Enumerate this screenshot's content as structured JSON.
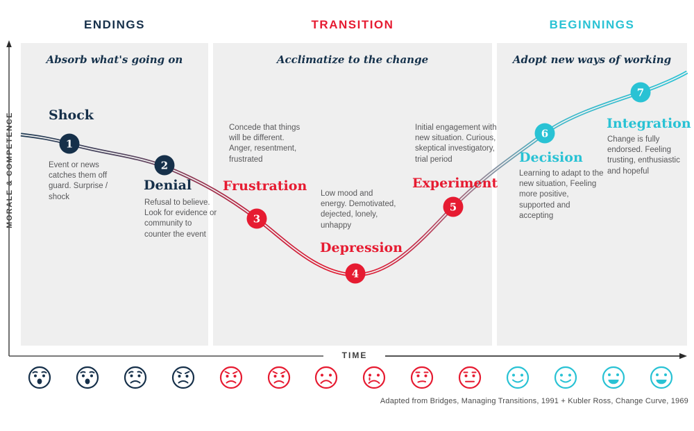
{
  "phases": [
    {
      "label": "ENDINGS",
      "subtitle": "Absorb what's going on",
      "color": "navy"
    },
    {
      "label": "TRANSITION",
      "subtitle": "Acclimatize to the change",
      "color": "red"
    },
    {
      "label": "BEGINNINGS",
      "subtitle": "Adopt new ways of working",
      "color": "cyan"
    }
  ],
  "axes": {
    "y_label": "MORALE & COMPETENCE",
    "x_label": "TIME"
  },
  "stages": [
    {
      "number": "1",
      "name": "Shock",
      "color": "navy",
      "description": "Event or news catches them off guard. Surprise / shock"
    },
    {
      "number": "2",
      "name": "Denial",
      "color": "navy",
      "description": "Refusal to believe. Look for evidence or community to counter the event"
    },
    {
      "number": "3",
      "name": "Frustration",
      "color": "red",
      "description": "Concede that things will be different. Anger, resentment, frustrated"
    },
    {
      "number": "4",
      "name": "Depression",
      "color": "red",
      "description": "Low mood and energy. Demotivated, dejected, lonely, unhappy"
    },
    {
      "number": "5",
      "name": "Experiment",
      "color": "red",
      "description": "Initial engagement with new situation. Curious, skeptical investigatory, trial period"
    },
    {
      "number": "6",
      "name": "Decision",
      "color": "cyan",
      "description": "Learning to adapt to the new situation, Feeling more positive, supported and accepting"
    },
    {
      "number": "7",
      "name": "Integration",
      "color": "cyan",
      "description": "Change is fully endorsed. Feeling trusting, enthusiastic and hopeful"
    }
  ],
  "faces": [
    {
      "color": "navy",
      "expression": "shocked"
    },
    {
      "color": "navy",
      "expression": "shocked"
    },
    {
      "color": "navy",
      "expression": "worried"
    },
    {
      "color": "navy",
      "expression": "angry"
    },
    {
      "color": "red",
      "expression": "angry"
    },
    {
      "color": "red",
      "expression": "angry"
    },
    {
      "color": "red",
      "expression": "sad"
    },
    {
      "color": "red",
      "expression": "crying"
    },
    {
      "color": "red",
      "expression": "unsure"
    },
    {
      "color": "red",
      "expression": "neutral"
    },
    {
      "color": "cyan",
      "expression": "smile"
    },
    {
      "color": "cyan",
      "expression": "smile"
    },
    {
      "color": "cyan",
      "expression": "grin"
    },
    {
      "color": "cyan",
      "expression": "grin"
    }
  ],
  "attribution": "Adapted from Bridges, Managing Transitions, 1991 + Kubler Ross, Change Curve, 1969",
  "colors": {
    "navy": "#16304a",
    "red": "#e61b31",
    "cyan": "#29c2d4",
    "panel": "#efefef",
    "text_gray": "#58585a"
  }
}
